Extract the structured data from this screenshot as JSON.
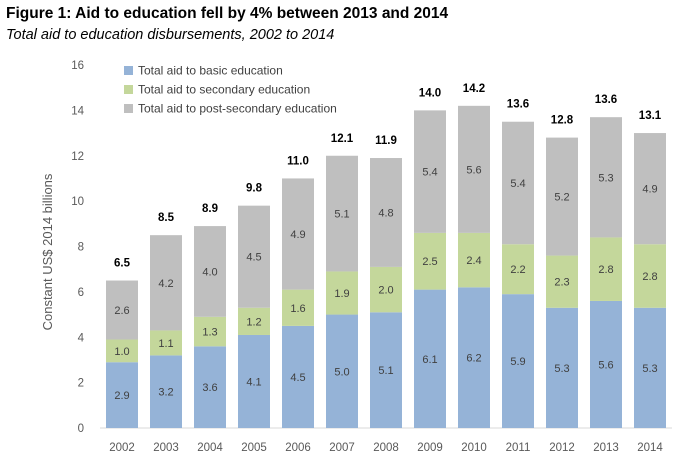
{
  "header": {
    "title": "Figure 1: Aid to education fell by 4% between 2013 and 2014",
    "subtitle": "Total aid to education disbursements, 2002 to 2014"
  },
  "chart_data": {
    "type": "bar",
    "stacked": true,
    "title": "Figure 1: Aid to education fell by 4% between 2013 and 2014",
    "subtitle": "Total aid to education disbursements, 2002 to 2014",
    "xlabel": "",
    "ylabel": "Constant US$ 2014 billions",
    "ylim": [
      0,
      16
    ],
    "yticks": [
      0,
      2,
      4,
      6,
      8,
      10,
      12,
      14,
      16
    ],
    "grid": false,
    "legend_position": "top-left",
    "categories": [
      "2002",
      "2003",
      "2004",
      "2005",
      "2006",
      "2007",
      "2008",
      "2009",
      "2010",
      "2011",
      "2012",
      "2013",
      "2014"
    ],
    "series": [
      {
        "name": "Total aid to basic education",
        "color": "#95B3D7",
        "values": [
          2.9,
          3.2,
          3.6,
          4.1,
          4.5,
          5.0,
          5.1,
          6.1,
          6.2,
          5.9,
          5.3,
          5.6,
          5.3
        ]
      },
      {
        "name": "Total aid to secondary education",
        "color": "#C4D79B",
        "values": [
          1.0,
          1.1,
          1.3,
          1.2,
          1.6,
          1.9,
          2.0,
          2.5,
          2.4,
          2.2,
          2.3,
          2.8,
          2.8
        ]
      },
      {
        "name": "Total aid to post-secondary education",
        "color": "#BFBFBF",
        "values": [
          2.6,
          4.2,
          4.0,
          4.5,
          4.9,
          5.1,
          4.8,
          5.4,
          5.6,
          5.4,
          5.2,
          5.3,
          4.9
        ]
      }
    ],
    "totals": [
      6.5,
      8.5,
      8.9,
      9.8,
      11.0,
      12.1,
      11.9,
      14.0,
      14.2,
      13.6,
      12.8,
      13.6,
      13.1
    ]
  }
}
